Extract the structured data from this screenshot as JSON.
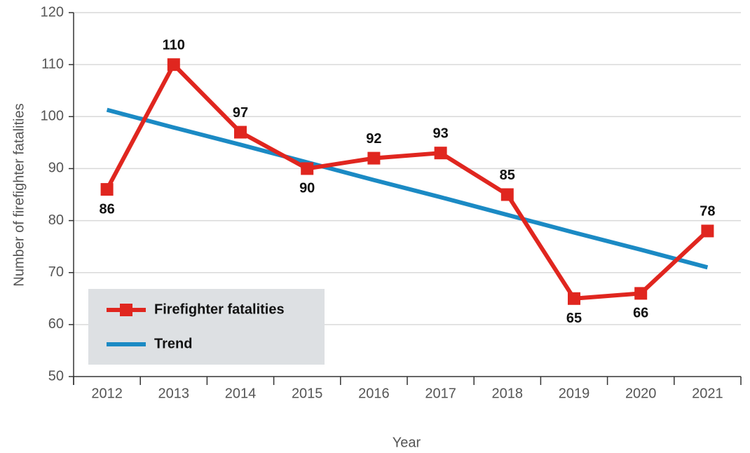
{
  "chart_data": {
    "type": "line",
    "x_label": "Year",
    "y_label": "Number of firefighter fatalities",
    "categories": [
      "2012",
      "2013",
      "2014",
      "2015",
      "2016",
      "2017",
      "2018",
      "2019",
      "2020",
      "2021"
    ],
    "series": [
      {
        "name": "Firefighter fatalities",
        "color": "#e0261f",
        "values": [
          86,
          110,
          97,
          90,
          92,
          93,
          85,
          65,
          66,
          78
        ],
        "markers": true,
        "data_labels": true
      },
      {
        "name": "Trend",
        "color": "#1b8ac4",
        "values": [
          101.3,
          97.9,
          94.6,
          91.2,
          87.8,
          84.5,
          81.1,
          77.7,
          74.4,
          71.0
        ]
      }
    ],
    "ylim": [
      50,
      120
    ],
    "yticks": [
      50,
      60,
      70,
      80,
      90,
      100,
      110,
      120
    ],
    "grid": true,
    "legend": "lower left"
  }
}
